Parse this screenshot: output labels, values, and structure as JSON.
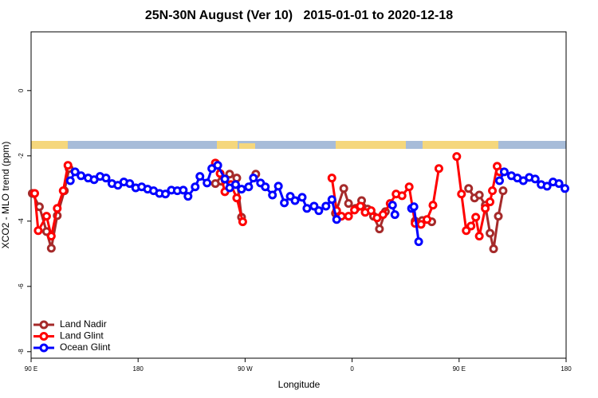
{
  "chart_data": {
    "type": "line",
    "title": "25N-30N August (Ver 10)   2015-01-01 to 2020-12-18",
    "xlabel": "Longitude",
    "ylabel": "XCO2 - MLO trend (ppm)",
    "xlim": [
      90,
      540
    ],
    "ylim": [
      -8.2,
      1.8
    ],
    "xticks": [
      {
        "value": 90,
        "label": "90 E"
      },
      180,
      {
        "value": 270,
        "label": "90 W"
      },
      {
        "value": 360,
        "label": "0"
      },
      {
        "value": 450,
        "label": "90 E"
      },
      {
        "value": 540,
        "label": "180"
      }
    ],
    "yticks": [
      -8,
      -6,
      -4,
      -2,
      0
    ],
    "legend": "bottom-left",
    "series": [
      {
        "name": "Land Nadir",
        "color": "#a52a2a",
        "x": [
          91,
          97,
          103,
          107,
          112,
          118,
          122,
          null,
          245,
          250,
          257,
          263,
          267,
          null,
          279,
          null,
          346,
          353,
          357,
          363,
          368,
          373,
          378,
          383,
          388,
          null,
          413,
          419,
          427,
          null,
          458,
          463,
          467,
          472,
          476,
          479,
          483,
          487
        ],
        "values": [
          -3.15,
          -3.56,
          -4.32,
          -4.83,
          -3.83,
          -3.07,
          -2.39,
          null,
          -2.85,
          -2.78,
          -2.56,
          -2.68,
          -3.88,
          null,
          -2.56,
          null,
          -3.76,
          -3.0,
          -3.46,
          -3.61,
          -3.37,
          -3.63,
          -3.85,
          -4.24,
          -3.71,
          null,
          -4.0,
          -3.98,
          -4.02,
          null,
          -3.0,
          -3.29,
          -3.2,
          -3.51,
          -4.37,
          -4.85,
          -3.85,
          -3.07
        ]
      },
      {
        "name": "Land Glint",
        "color": "#ff0000",
        "x": [
          93,
          96,
          103,
          107,
          112,
          117,
          121,
          null,
          245,
          249,
          253,
          258,
          263,
          268,
          null,
          343,
          347,
          351,
          357,
          362,
          367,
          371,
          376,
          381,
          386,
          392,
          397,
          402,
          408,
          413,
          418,
          423,
          428,
          433,
          null,
          448,
          452,
          456,
          460,
          464,
          467,
          472,
          476,
          478,
          482,
          484
        ],
        "values": [
          -3.15,
          -4.29,
          -3.85,
          -4.46,
          -3.61,
          -3.07,
          -2.29,
          null,
          -2.22,
          -2.54,
          -3.1,
          -2.88,
          -3.29,
          -4.02,
          null,
          -2.68,
          -3.68,
          -3.85,
          -3.85,
          -3.66,
          -3.54,
          -3.73,
          -3.68,
          -3.9,
          -3.8,
          -3.46,
          -3.17,
          -3.22,
          -2.95,
          -4.07,
          -4.1,
          -3.95,
          -3.51,
          -2.39,
          null,
          -2.02,
          -3.17,
          -4.29,
          -4.15,
          -3.88,
          -4.46,
          -3.61,
          -3.41,
          -3.07,
          -2.32,
          -2.49
        ]
      },
      {
        "name": "Ocean Glint",
        "color": "#0000ff",
        "x": [
          123,
          127,
          132,
          138,
          143,
          148,
          153,
          158,
          163,
          168,
          173,
          178,
          183,
          188,
          193,
          198,
          203,
          208,
          213,
          218,
          222,
          228,
          232,
          238,
          242,
          247,
          253,
          257,
          262,
          267,
          273,
          277,
          283,
          287,
          293,
          298,
          303,
          308,
          312,
          318,
          322,
          328,
          332,
          338,
          343,
          347,
          null,
          394,
          396,
          null,
          410,
          412,
          416,
          null,
          484,
          488,
          494,
          499,
          504,
          509,
          514,
          519,
          524,
          529,
          534,
          539
        ],
        "values": [
          -2.76,
          -2.49,
          -2.61,
          -2.68,
          -2.73,
          -2.63,
          -2.68,
          -2.85,
          -2.9,
          -2.8,
          -2.85,
          -2.98,
          -2.95,
          -3.02,
          -3.07,
          -3.15,
          -3.17,
          -3.05,
          -3.07,
          -3.05,
          -3.24,
          -2.95,
          -2.63,
          -2.83,
          -2.39,
          -2.29,
          -2.71,
          -2.98,
          -2.88,
          -3.02,
          -2.95,
          -2.68,
          -2.83,
          -2.95,
          -3.2,
          -2.93,
          -3.44,
          -3.24,
          -3.37,
          -3.27,
          -3.61,
          -3.54,
          -3.68,
          -3.54,
          -3.34,
          -3.95,
          null,
          -3.51,
          -3.8,
          null,
          -3.61,
          -3.56,
          -4.63,
          null,
          -2.76,
          -2.49,
          -2.61,
          -2.68,
          -2.76,
          -2.66,
          -2.71,
          -2.88,
          -2.93,
          -2.8,
          -2.85,
          -3.0
        ]
      }
    ]
  }
}
